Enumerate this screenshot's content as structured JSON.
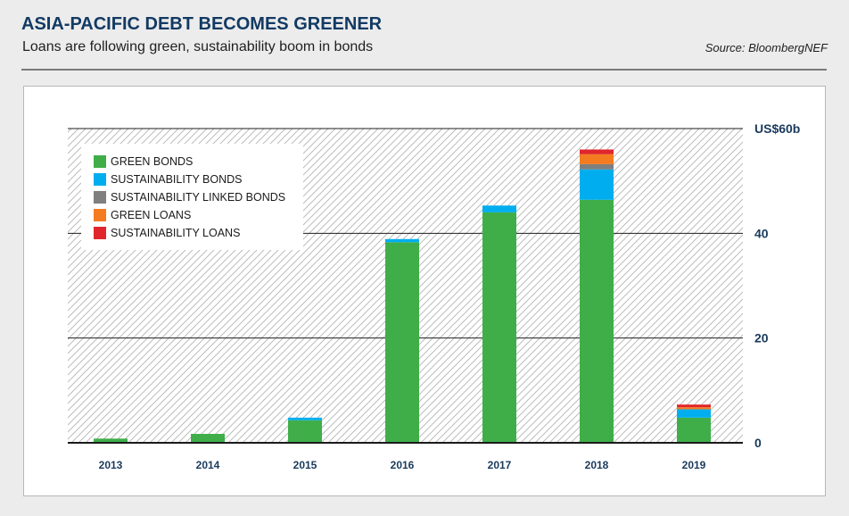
{
  "header": {
    "title": "ASIA-PACIFIC DEBT BECOMES GREENER",
    "subtitle": "Loans are following green, sustainability boom in bonds",
    "source": "Source: BloombergNEF"
  },
  "chart_data": {
    "type": "bar",
    "stacked": true,
    "categories": [
      "2013",
      "2014",
      "2015",
      "2016",
      "2017",
      "2018",
      "2019"
    ],
    "series": [
      {
        "name": "GREEN BONDS",
        "color": "#3fae49",
        "values": [
          0.8,
          1.7,
          4.3,
          38.3,
          44.0,
          46.4,
          4.8
        ]
      },
      {
        "name": "SUSTAINABILITY BONDS",
        "color": "#00aeef",
        "values": [
          0,
          0,
          0.5,
          0.6,
          1.3,
          5.8,
          1.6
        ]
      },
      {
        "name": "SUSTAINABILITY LINKED BONDS",
        "color": "#7f7f7f",
        "values": [
          0,
          0,
          0,
          0,
          0,
          1.0,
          0
        ]
      },
      {
        "name": "GREEN LOANS",
        "color": "#f47b20",
        "values": [
          0,
          0,
          0,
          0,
          0,
          1.9,
          0.4
        ]
      },
      {
        "name": "SUSTAINABILITY LOANS",
        "color": "#e0262c",
        "values": [
          0,
          0,
          0,
          0,
          0,
          0.9,
          0.5
        ]
      }
    ],
    "yticks": [
      {
        "value": 0,
        "label": "0"
      },
      {
        "value": 20,
        "label": "20"
      },
      {
        "value": 40,
        "label": "40"
      },
      {
        "value": 60,
        "label": "US$60b"
      }
    ],
    "ylim": [
      0,
      60
    ],
    "grid": true,
    "legend_position": "top-left",
    "xlabel": "",
    "ylabel": ""
  }
}
